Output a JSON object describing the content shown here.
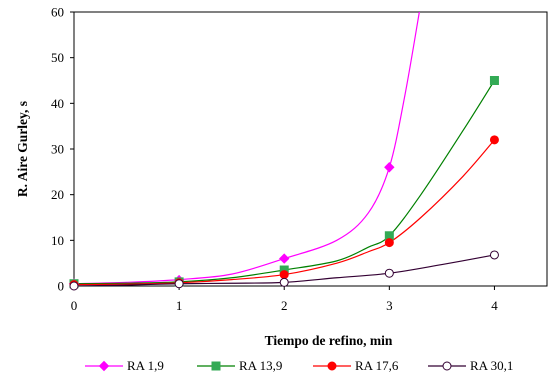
{
  "chart_data": {
    "type": "line",
    "title": "",
    "xlabel": "Tiempo de refino, min",
    "ylabel": "R. Aire Gurley, s",
    "xlim": [
      0,
      4.5
    ],
    "ylim": [
      0,
      60
    ],
    "x_ticks": [
      0,
      1,
      2,
      3,
      4
    ],
    "y_ticks": [
      0,
      10,
      20,
      30,
      40,
      50,
      60
    ],
    "grid": false,
    "legend_position": "bottom",
    "series": [
      {
        "name": "RA 1,9",
        "color": "#ff00ff",
        "marker": "diamond",
        "marker_fill": "filled",
        "points": [
          [
            0,
            0.5
          ],
          [
            1,
            1.3
          ],
          [
            2,
            6
          ],
          [
            3,
            26
          ]
        ],
        "curve": [
          [
            0,
            0.5
          ],
          [
            0.5,
            0.8
          ],
          [
            1,
            1.4
          ],
          [
            1.5,
            2.6
          ],
          [
            2,
            6
          ],
          [
            2.5,
            10
          ],
          [
            2.8,
            16
          ],
          [
            3,
            26
          ],
          [
            3.15,
            42
          ],
          [
            3.3,
            62
          ]
        ]
      },
      {
        "name": "RA 13,9",
        "color": "#008000",
        "marker_color": "#33aa55",
        "marker": "square",
        "marker_fill": "filled",
        "points": [
          [
            0,
            0.5
          ],
          [
            1,
            0.9
          ],
          [
            2,
            3.5
          ],
          [
            3,
            11
          ],
          [
            4,
            45
          ]
        ],
        "curve": [
          [
            0,
            0.5
          ],
          [
            0.5,
            0.6
          ],
          [
            1,
            0.9
          ],
          [
            1.5,
            1.8
          ],
          [
            2,
            3.5
          ],
          [
            2.5,
            5.5
          ],
          [
            2.8,
            8.5
          ],
          [
            3,
            11
          ],
          [
            3.3,
            20
          ],
          [
            3.7,
            34
          ],
          [
            4,
            45
          ]
        ]
      },
      {
        "name": "RA 17,6",
        "color": "#ff0000",
        "marker": "circle",
        "marker_fill": "filled",
        "points": [
          [
            0,
            0.3
          ],
          [
            1,
            0.7
          ],
          [
            2,
            2.5
          ],
          [
            3,
            9.5
          ],
          [
            4,
            32
          ]
        ],
        "curve": [
          [
            0,
            0.3
          ],
          [
            0.5,
            0.4
          ],
          [
            1,
            0.7
          ],
          [
            1.5,
            1.4
          ],
          [
            2,
            2.5
          ],
          [
            2.5,
            5
          ],
          [
            2.8,
            7.5
          ],
          [
            3,
            9.5
          ],
          [
            3.3,
            15
          ],
          [
            3.7,
            24
          ],
          [
            4,
            32
          ]
        ]
      },
      {
        "name": "RA 30,1",
        "color": "#330033",
        "marker": "circle",
        "marker_fill": "open",
        "points": [
          [
            0,
            0
          ],
          [
            1,
            0.5
          ],
          [
            2,
            0.8
          ],
          [
            3,
            2.8
          ],
          [
            4,
            6.8
          ]
        ],
        "curve": [
          [
            0,
            0
          ],
          [
            0.5,
            0.2
          ],
          [
            1,
            0.5
          ],
          [
            1.5,
            0.6
          ],
          [
            2,
            0.8
          ],
          [
            2.5,
            1.8
          ],
          [
            3,
            2.8
          ],
          [
            3.5,
            4.7
          ],
          [
            4,
            6.8
          ]
        ]
      }
    ]
  }
}
